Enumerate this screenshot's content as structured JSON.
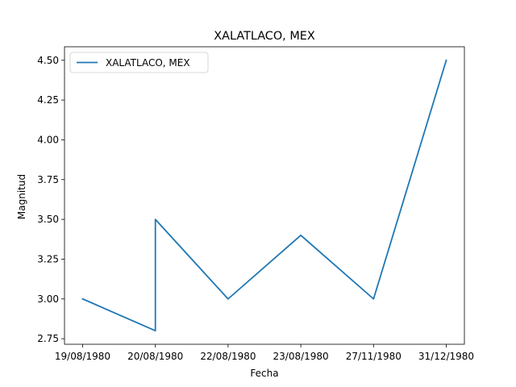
{
  "chart_data": {
    "type": "line",
    "title": "XALATLACO, MEX",
    "xlabel": "Fecha",
    "ylabel": "Magnitud",
    "x_tick_labels": [
      "19/08/1980",
      "20/08/1980",
      "22/08/1980",
      "23/08/1980",
      "27/11/1980",
      "31/12/1980"
    ],
    "y_ticks": [
      2.75,
      3.0,
      3.25,
      3.5,
      3.75,
      4.0,
      4.25,
      4.5
    ],
    "ylim": [
      2.715,
      4.585
    ],
    "series": [
      {
        "name": "XALATLACO, MEX",
        "color": "#1f77b4",
        "points": [
          {
            "x": "19/08/1980",
            "y": 3.0
          },
          {
            "x": "20/08/1980",
            "y": 2.8
          },
          {
            "x": "20/08/1980",
            "y": 3.5
          },
          {
            "x": "22/08/1980",
            "y": 3.0
          },
          {
            "x": "23/08/1980",
            "y": 3.4
          },
          {
            "x": "27/11/1980",
            "y": 3.0
          },
          {
            "x": "31/12/1980",
            "y": 4.5
          }
        ]
      }
    ],
    "legend": {
      "position": "upper-left"
    },
    "grid": false
  }
}
